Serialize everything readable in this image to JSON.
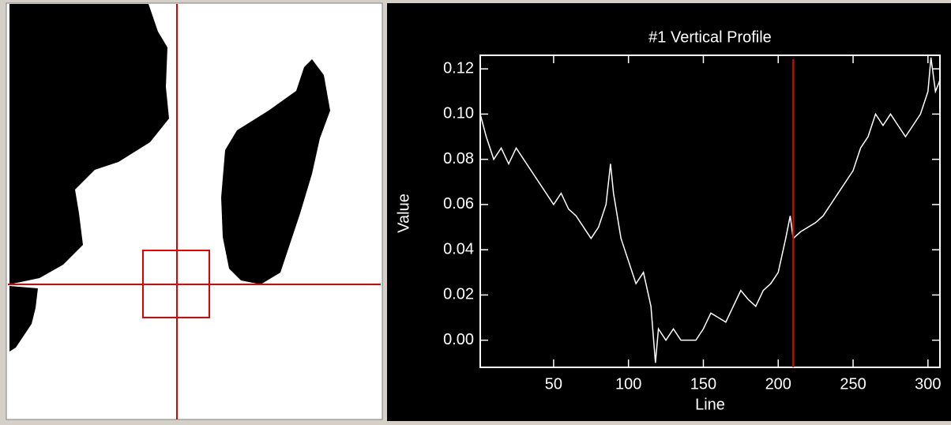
{
  "chart_data": {
    "type": "line",
    "title": "#1 Vertical Profile",
    "x_label": "Line",
    "y_label": "Value",
    "xlim": [
      1,
      308
    ],
    "ylim": [
      -0.012,
      0.126
    ],
    "xticks": [
      50,
      100,
      150,
      200,
      250,
      300
    ],
    "yticks": [
      {
        "value": 0,
        "label": "0.00"
      },
      0.02,
      0.04,
      0.06,
      0.08,
      {
        "value": 0.1,
        "label": "0.10"
      },
      0.12
    ],
    "cursor_x": 210,
    "cursor_color": "#e00000",
    "series": [
      {
        "color": "#ffffff",
        "x": [
          1,
          5,
          10,
          15,
          20,
          25,
          30,
          35,
          40,
          45,
          50,
          55,
          60,
          65,
          70,
          75,
          80,
          85,
          88,
          90,
          95,
          100,
          105,
          110,
          115,
          118,
          120,
          125,
          130,
          135,
          140,
          145,
          150,
          155,
          160,
          165,
          170,
          175,
          180,
          185,
          190,
          195,
          200,
          205,
          208,
          210,
          215,
          220,
          225,
          230,
          235,
          240,
          245,
          250,
          255,
          260,
          265,
          270,
          275,
          280,
          285,
          290,
          295,
          300,
          302,
          305,
          308
        ],
        "values": [
          0.1,
          0.09,
          0.08,
          0.085,
          0.078,
          0.085,
          0.08,
          0.075,
          0.07,
          0.065,
          0.06,
          0.065,
          0.058,
          0.055,
          0.05,
          0.045,
          0.05,
          0.06,
          0.078,
          0.065,
          0.045,
          0.035,
          0.025,
          0.03,
          0.015,
          -0.01,
          0.005,
          0,
          0.005,
          0,
          0,
          0,
          0.005,
          0.012,
          0.01,
          0.008,
          0.015,
          0.022,
          0.018,
          0.015,
          0.022,
          0.025,
          0.03,
          0.045,
          0.055,
          0.045,
          0.048,
          0.05,
          0.052,
          0.055,
          0.06,
          0.065,
          0.07,
          0.075,
          0.085,
          0.09,
          0.1,
          0.095,
          0.1,
          0.095,
          0.09,
          0.095,
          0.1,
          0.11,
          0.125,
          0.11,
          0.115
        ]
      }
    ]
  }
}
